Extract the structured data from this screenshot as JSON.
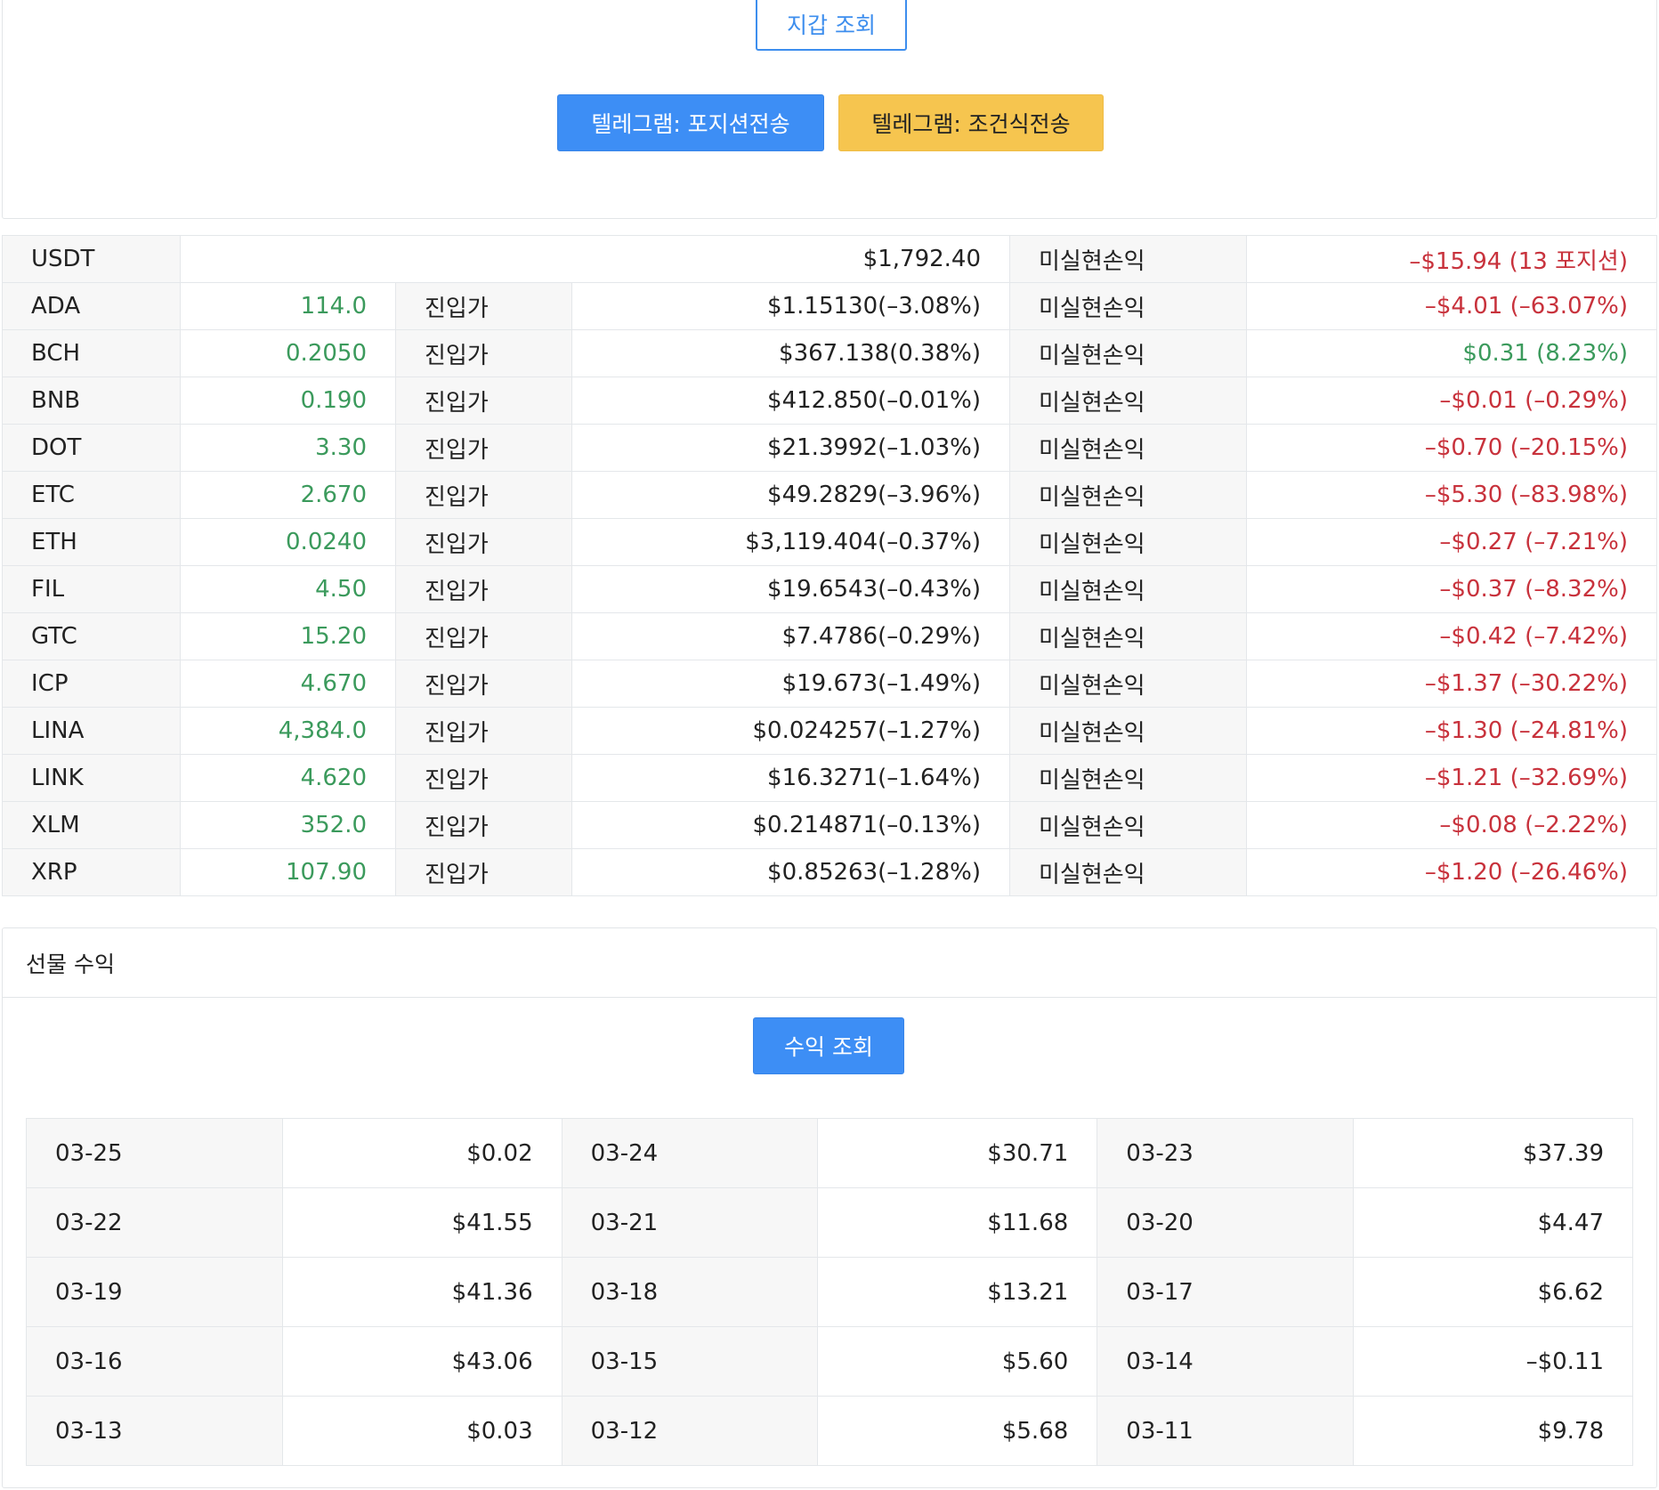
{
  "wallet": {
    "check_button": "지갑 조회",
    "telegram_position_button": "텔레그램: 포지션전송",
    "telegram_condition_button": "텔레그램: 조건식전송"
  },
  "positions": {
    "usdt": {
      "symbol": "USDT",
      "balance": "$1,792.40",
      "pnl_label": "미실현손익",
      "pnl": "–$15.94 (13 포지션)",
      "pnl_status": "neg"
    },
    "entry_label": "진입가",
    "pnl_label": "미실현손익",
    "rows": [
      {
        "symbol": "ADA",
        "qty": "114.0",
        "entry": "$1.15130(–3.08%)",
        "pnl": "–$4.01 (–63.07%)",
        "pnl_status": "neg"
      },
      {
        "symbol": "BCH",
        "qty": "0.2050",
        "entry": "$367.138(0.38%)",
        "pnl": "$0.31 (8.23%)",
        "pnl_status": "pos"
      },
      {
        "symbol": "BNB",
        "qty": "0.190",
        "entry": "$412.850(–0.01%)",
        "pnl": "–$0.01 (–0.29%)",
        "pnl_status": "neg"
      },
      {
        "symbol": "DOT",
        "qty": "3.30",
        "entry": "$21.3992(–1.03%)",
        "pnl": "–$0.70 (–20.15%)",
        "pnl_status": "neg"
      },
      {
        "symbol": "ETC",
        "qty": "2.670",
        "entry": "$49.2829(–3.96%)",
        "pnl": "–$5.30 (–83.98%)",
        "pnl_status": "neg"
      },
      {
        "symbol": "ETH",
        "qty": "0.0240",
        "entry": "$3,119.404(–0.37%)",
        "pnl": "–$0.27 (–7.21%)",
        "pnl_status": "neg"
      },
      {
        "symbol": "FIL",
        "qty": "4.50",
        "entry": "$19.6543(–0.43%)",
        "pnl": "–$0.37 (–8.32%)",
        "pnl_status": "neg"
      },
      {
        "symbol": "GTC",
        "qty": "15.20",
        "entry": "$7.4786(–0.29%)",
        "pnl": "–$0.42 (–7.42%)",
        "pnl_status": "neg"
      },
      {
        "symbol": "ICP",
        "qty": "4.670",
        "entry": "$19.673(–1.49%)",
        "pnl": "–$1.37 (–30.22%)",
        "pnl_status": "neg"
      },
      {
        "symbol": "LINA",
        "qty": "4,384.0",
        "entry": "$0.024257(–1.27%)",
        "pnl": "–$1.30 (–24.81%)",
        "pnl_status": "neg"
      },
      {
        "symbol": "LINK",
        "qty": "4.620",
        "entry": "$16.3271(–1.64%)",
        "pnl": "–$1.21 (–32.69%)",
        "pnl_status": "neg"
      },
      {
        "symbol": "XLM",
        "qty": "352.0",
        "entry": "$0.214871(–0.13%)",
        "pnl": "–$0.08 (–2.22%)",
        "pnl_status": "neg"
      },
      {
        "symbol": "XRP",
        "qty": "107.90",
        "entry": "$0.85263(–1.28%)",
        "pnl": "–$1.20 (–26.46%)",
        "pnl_status": "neg"
      }
    ]
  },
  "futures": {
    "title": "선물 수익",
    "check_button": "수익 조회",
    "daily": [
      [
        {
          "date": "03-25",
          "value": "$0.02"
        },
        {
          "date": "03-24",
          "value": "$30.71"
        },
        {
          "date": "03-23",
          "value": "$37.39"
        }
      ],
      [
        {
          "date": "03-22",
          "value": "$41.55"
        },
        {
          "date": "03-21",
          "value": "$11.68"
        },
        {
          "date": "03-20",
          "value": "$4.47"
        }
      ],
      [
        {
          "date": "03-19",
          "value": "$41.36"
        },
        {
          "date": "03-18",
          "value": "$13.21"
        },
        {
          "date": "03-17",
          "value": "$6.62"
        }
      ],
      [
        {
          "date": "03-16",
          "value": "$43.06"
        },
        {
          "date": "03-15",
          "value": "$5.60"
        },
        {
          "date": "03-14",
          "value": "–$0.11"
        }
      ],
      [
        {
          "date": "03-13",
          "value": "$0.03"
        },
        {
          "date": "03-12",
          "value": "$5.68"
        },
        {
          "date": "03-11",
          "value": "$9.78"
        }
      ]
    ]
  },
  "colors": {
    "primary": "#3d8ef5",
    "warning": "#f6c54f",
    "positive": "#3b9a5c",
    "negative": "#c8323c"
  }
}
